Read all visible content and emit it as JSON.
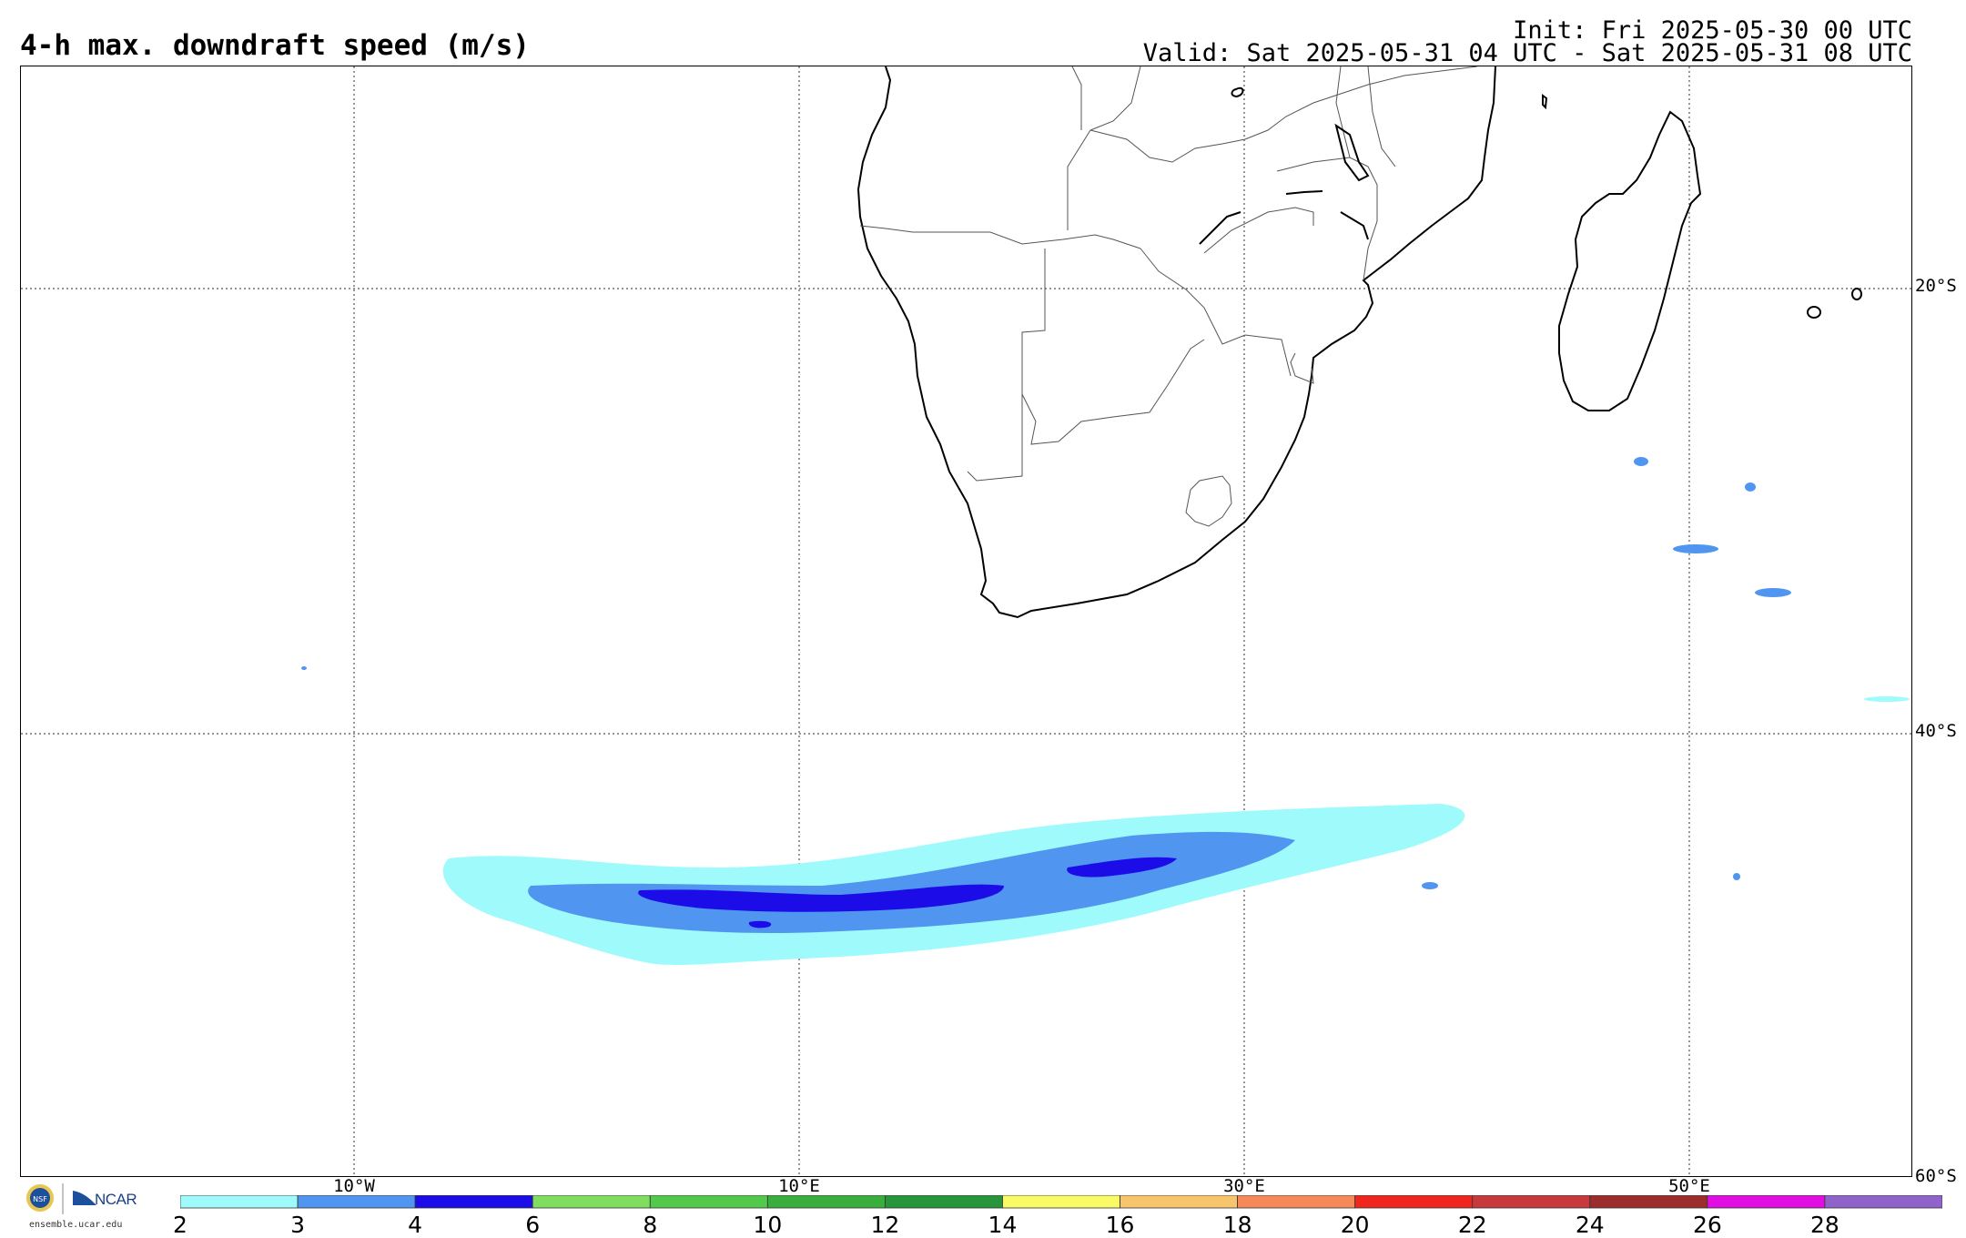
{
  "header": {
    "title": "4-h max. downdraft speed (m/s)",
    "init": "Init: Fri 2025-05-30 00 UTC",
    "valid": "Valid: Sat 2025-05-31 04 UTC - Sat 2025-05-31 08 UTC"
  },
  "axes": {
    "lat_labels": [
      "20°S",
      "40°S",
      "60°S"
    ],
    "lon_labels": [
      "10°W",
      "10°E",
      "30°E",
      "50°E"
    ]
  },
  "colorbar": {
    "labels": [
      "2",
      "3",
      "4",
      "6",
      "8",
      "10",
      "12",
      "14",
      "16",
      "18",
      "20",
      "22",
      "24",
      "26",
      "28"
    ],
    "colors": [
      "#9ffbfb",
      "#5095f0",
      "#1c0de8",
      "#7fdd5f",
      "#53c94b",
      "#3aae3c",
      "#27953a",
      "#fafa66",
      "#f8c56c",
      "#f6895a",
      "#f0261e",
      "#c8393e",
      "#9b2d2d",
      "#e10ee1",
      "#9063cb"
    ]
  },
  "logos": {
    "nsf": "NSF",
    "ncar": "NCAR",
    "url": "ensemble.ucar.edu"
  }
}
